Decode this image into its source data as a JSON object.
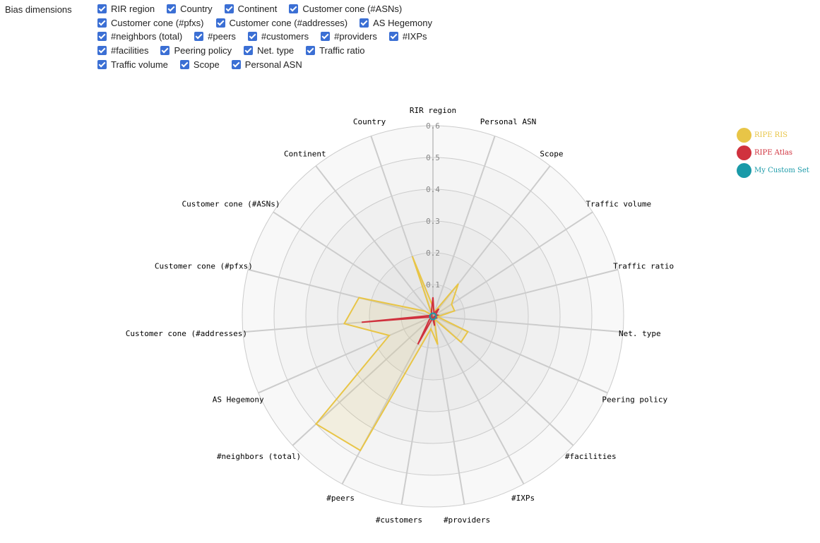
{
  "controls": {
    "label": "Bias dimensions",
    "rows": [
      [
        {
          "label": "RIR region",
          "checked": true
        },
        {
          "label": "Country",
          "checked": true
        },
        {
          "label": "Continent",
          "checked": true
        },
        {
          "label": "Customer cone (#ASNs)",
          "checked": true
        }
      ],
      [
        {
          "label": "Customer cone (#pfxs)",
          "checked": true
        },
        {
          "label": "Customer cone (#addresses)",
          "checked": true
        },
        {
          "label": "AS Hegemony",
          "checked": true
        }
      ],
      [
        {
          "label": "#neighbors (total)",
          "checked": true
        },
        {
          "label": "#peers",
          "checked": true
        },
        {
          "label": "#customers",
          "checked": true
        },
        {
          "label": "#providers",
          "checked": true
        },
        {
          "label": "#IXPs",
          "checked": true
        }
      ],
      [
        {
          "label": "#facilities",
          "checked": true
        },
        {
          "label": "Peering policy",
          "checked": true
        },
        {
          "label": "Net. type",
          "checked": true
        },
        {
          "label": "Traffic ratio",
          "checked": true
        }
      ],
      [
        {
          "label": "Traffic volume",
          "checked": true
        },
        {
          "label": "Scope",
          "checked": true
        },
        {
          "label": "Personal ASN",
          "checked": true
        }
      ]
    ]
  },
  "colors": {
    "ripe_ris": "#e8c547",
    "ripe_atlas": "#d0323e",
    "custom_set": "#1a9aa8",
    "grid": "#cccccc",
    "tick_text": "#888888"
  },
  "chart_data": {
    "type": "radar",
    "title": "",
    "axes": [
      "RIR region",
      "Personal ASN",
      "Scope",
      "Traffic volume",
      "Traffic ratio",
      "Net. type",
      "Peering policy",
      "#facilities",
      "#IXPs",
      "#providers",
      "#customers",
      "#peers",
      "#neighbors (total)",
      "AS Hegemony",
      "Customer cone (#addresses)",
      "Customer cone (#pfxs)",
      "Customer cone (#ASNs)",
      "Continent",
      "Country"
    ],
    "rlim": [
      0,
      0.6
    ],
    "rticks": [
      "0",
      "0.1",
      "0.2",
      "0.3",
      "0.4",
      "0.5",
      "0.6"
    ],
    "grid": true,
    "legend_position": "top-right",
    "series": [
      {
        "name": "RIPE RIS",
        "color": "#e8c547",
        "values": [
          0.03,
          0.015,
          0.13,
          0.07,
          0.07,
          0.015,
          0.12,
          0.12,
          0.01,
          0.09,
          0.04,
          0.48,
          0.5,
          0.15,
          0.28,
          0.24,
          0.03,
          0.005,
          0.2
        ]
      },
      {
        "name": "RIPE Atlas",
        "color": "#d0323e",
        "values": [
          0.06,
          0.01,
          0.03,
          0.01,
          0.015,
          0.005,
          0.015,
          0.005,
          0.005,
          0.03,
          0.005,
          0.1,
          0.015,
          0.005,
          0.225,
          0.01,
          0.005,
          0.005,
          0.015
        ]
      },
      {
        "name": "My Custom Set",
        "color": "#1a9aa8",
        "values": [
          0.01,
          0.01,
          0.01,
          0.01,
          0.01,
          0.01,
          0.01,
          0.01,
          0.01,
          0.01,
          0.01,
          0.01,
          0.01,
          0.01,
          0.01,
          0.01,
          0.01,
          0.01,
          0.01
        ]
      }
    ]
  }
}
